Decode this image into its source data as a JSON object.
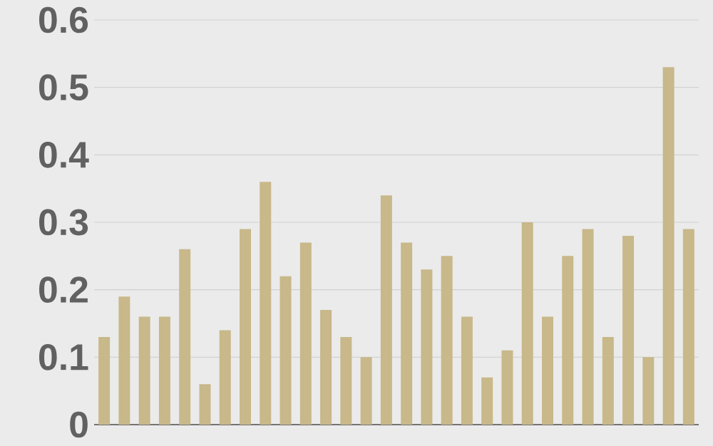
{
  "chart_data": {
    "type": "bar",
    "categories": [
      null,
      null,
      null,
      null,
      null,
      null,
      null,
      null,
      null,
      null,
      null,
      null,
      null,
      null,
      null,
      null,
      null,
      null,
      null,
      null,
      null,
      null,
      null,
      null,
      null,
      null,
      null,
      null,
      null,
      null
    ],
    "values": [
      0.13,
      0.19,
      0.16,
      0.16,
      0.26,
      0.06,
      0.14,
      0.29,
      0.36,
      0.22,
      0.27,
      0.17,
      0.13,
      0.1,
      0.34,
      0.27,
      0.23,
      0.25,
      0.16,
      0.07,
      0.11,
      0.3,
      0.16,
      0.25,
      0.29,
      0.13,
      0.28,
      0.1,
      0.53,
      0.29
    ],
    "color": "#c8b88a",
    "ylim": [
      0,
      0.6
    ],
    "yticks": [
      0,
      0.1,
      0.2,
      0.3,
      0.4,
      0.5,
      0.6
    ],
    "grid": "y",
    "tick_labels": "y"
  }
}
